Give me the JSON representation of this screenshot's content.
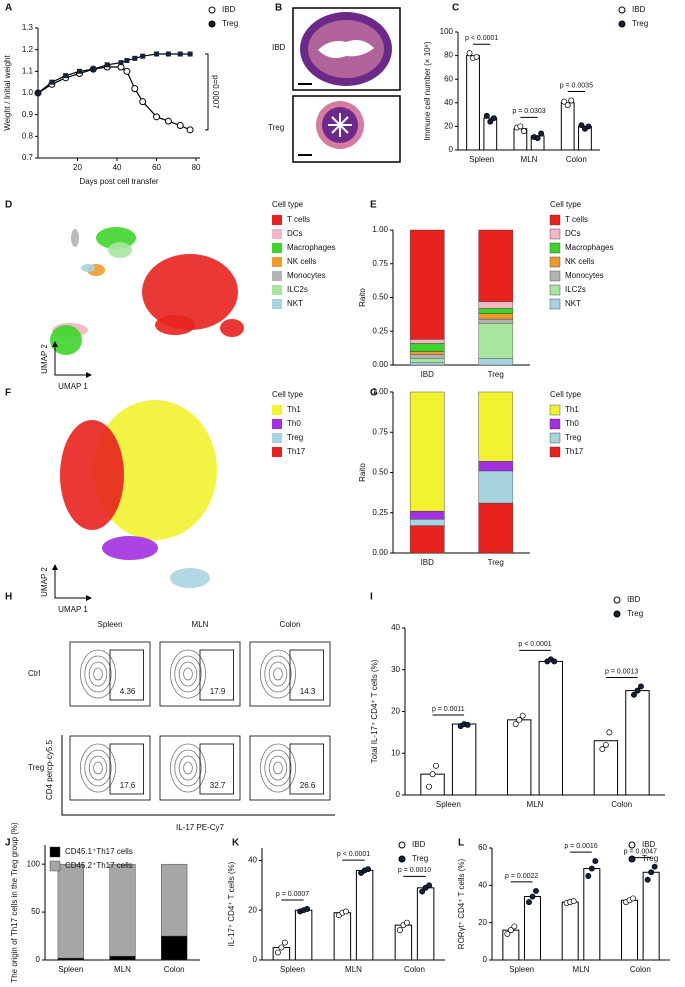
{
  "chart_data": [
    {
      "panel": "A",
      "type": "line",
      "xlabel": "Days post cell transfer",
      "ylabel": "Weight / Initial weight",
      "x": [
        0,
        7,
        14,
        21,
        28,
        35,
        42,
        45,
        49,
        53,
        60,
        66,
        72,
        77
      ],
      "series": [
        {
          "name": "IBD",
          "color": "#ffffff",
          "values": [
            1.0,
            1.04,
            1.07,
            1.09,
            1.11,
            1.12,
            1.12,
            1.1,
            1.02,
            0.96,
            0.89,
            0.87,
            0.85,
            0.83
          ]
        },
        {
          "name": "Treg",
          "color": "#14213d",
          "values": [
            1.0,
            1.05,
            1.08,
            1.1,
            1.11,
            1.13,
            1.14,
            1.15,
            1.16,
            1.17,
            1.18,
            1.18,
            1.18,
            1.18
          ]
        }
      ],
      "xlim": [
        0,
        82
      ],
      "xticks": [
        20,
        40,
        60,
        80
      ],
      "ylim": [
        0.7,
        1.3
      ],
      "yticks": [
        0.7,
        0.8,
        0.9,
        {
          "value": 1,
          "label": "1.0"
        },
        1.1,
        1.2,
        1.3
      ],
      "annotation": "p=0.0007"
    },
    {
      "panel": "C",
      "type": "bar",
      "ylabel": "Immune cell number (× 10⁶)",
      "categories": [
        "Spleen",
        "MLN",
        "Colon"
      ],
      "series": [
        {
          "name": "IBD",
          "color": "#ffffff",
          "values": [
            80,
            18,
            40
          ],
          "points": [
            [
              82,
              78,
              79
            ],
            [
              19,
              20,
              16
            ],
            [
              41,
              38,
              42
            ]
          ]
        },
        {
          "name": "Treg",
          "color": "#14213d",
          "values": [
            27,
            12,
            20
          ],
          "points": [
            [
              29,
              24,
              27
            ],
            [
              11,
              10,
              14
            ],
            [
              21,
              18,
              20
            ]
          ]
        }
      ],
      "ylim": [
        0,
        100
      ],
      "yticks": [
        0,
        20,
        40,
        60,
        80,
        100
      ],
      "pvalues": [
        "p < 0.0001",
        "p = 0.0303",
        "p = 0.0035"
      ]
    },
    {
      "panel": "D",
      "type": "umap",
      "xlabel": "UMAP 1",
      "ylabel": "UMAP 2",
      "legend_title": "Cell type",
      "categories": [
        "T cells",
        "DCs",
        "Macrophages",
        "NK cells",
        "Monocytes",
        "ILC2s",
        "NKT"
      ],
      "colors": [
        "#e8231f",
        "#f4b6c6",
        "#3fd42b",
        "#ef9a2e",
        "#b3b3b3",
        "#a8e6a0",
        "#a7d3e0"
      ]
    },
    {
      "panel": "E",
      "type": "stacked",
      "ylabel": "Raito",
      "legend_title": "Cell type",
      "stack_from": "last",
      "categories": [
        "IBD",
        "Treg"
      ],
      "series": [
        {
          "name": "T cells",
          "color": "#e8231f",
          "values": [
            0.81,
            0.53
          ]
        },
        {
          "name": "DCs",
          "color": "#f4b6c6",
          "values": [
            0.03,
            0.05
          ]
        },
        {
          "name": "Macrophages",
          "color": "#3fd42b",
          "values": [
            0.06,
            0.04
          ]
        },
        {
          "name": "NK cells",
          "color": "#ef9a2e",
          "values": [
            0.02,
            0.04
          ]
        },
        {
          "name": "Monocytes",
          "color": "#b3b3b3",
          "values": [
            0.03,
            0.03
          ]
        },
        {
          "name": "ILC2s",
          "color": "#a8e6a0",
          "values": [
            0.03,
            0.26
          ]
        },
        {
          "name": "NKT",
          "color": "#a7d3e0",
          "values": [
            0.02,
            0.05
          ]
        }
      ],
      "ylim": [
        0,
        1
      ],
      "yticks": [
        {
          "value": 0,
          "label": "0.00"
        },
        {
          "value": 0.25,
          "label": "0.25"
        },
        {
          "value": 0.5,
          "label": "0.50"
        },
        {
          "value": 0.75,
          "label": "0.75"
        },
        {
          "value": 1,
          "label": "1.00"
        }
      ]
    },
    {
      "panel": "F",
      "type": "umap",
      "xlabel": "UMAP 1",
      "ylabel": "UMAP 2",
      "legend_title": "Cell type",
      "categories": [
        "Th1",
        "Th0",
        "Treg",
        "Th17"
      ],
      "colors": [
        "#f2f230",
        "#a230e0",
        "#a8d4e0",
        "#e8231f"
      ]
    },
    {
      "panel": "G",
      "type": "stacked",
      "ylabel": "Raito",
      "legend_title": "Cell type",
      "stack_from": "last",
      "categories": [
        "IBD",
        "Treg"
      ],
      "series": [
        {
          "name": "Th1",
          "color": "#f2f230",
          "values": [
            0.74,
            0.43
          ]
        },
        {
          "name": "Th0",
          "color": "#a230e0",
          "values": [
            0.05,
            0.06
          ]
        },
        {
          "name": "Treg",
          "color": "#a8d4e0",
          "values": [
            0.04,
            0.2
          ]
        },
        {
          "name": "Th17",
          "color": "#e8231f",
          "values": [
            0.17,
            0.31
          ]
        }
      ],
      "ylim": [
        0,
        1
      ],
      "yticks": [
        {
          "value": 0,
          "label": "0.00"
        },
        {
          "value": 0.25,
          "label": "0.25"
        },
        {
          "value": 0.5,
          "label": "0.50"
        },
        {
          "value": 0.75,
          "label": "0.75"
        },
        {
          "value": 1,
          "label": "1.00"
        }
      ]
    },
    {
      "panel": "I",
      "type": "bar",
      "ylabel": "Total IL-17⁺ CD4⁺ T cells (%)",
      "categories": [
        "Spleen",
        "MLN",
        "Colon"
      ],
      "series": [
        {
          "name": "IBD",
          "color": "#ffffff",
          "values": [
            5,
            18,
            13
          ],
          "points": [
            [
              2,
              5,
              7
            ],
            [
              17,
              18,
              19
            ],
            [
              11,
              12,
              15
            ]
          ]
        },
        {
          "name": "Treg",
          "color": "#14213d",
          "values": [
            17,
            32,
            25
          ],
          "points": [
            [
              16.5,
              17,
              16.8
            ],
            [
              32,
              32.5,
              32
            ],
            [
              24,
              25,
              26
            ]
          ]
        }
      ],
      "ylim": [
        0,
        40
      ],
      "yticks": [
        0,
        10,
        20,
        30,
        40
      ],
      "pvalues": [
        "p = 0.0011",
        "p < 0.0001",
        "p = 0.0013"
      ]
    },
    {
      "panel": "J",
      "type": "stacked",
      "ylabel": "The origin of Th17 cells in the Treg group (%)",
      "stack_from": "first",
      "categories": [
        "Spleen",
        "MLN",
        "Colon"
      ],
      "series": [
        {
          "name": "CD45.1⁺Th17 cells",
          "color": "#000000",
          "values": [
            2,
            4,
            25
          ]
        },
        {
          "name": "CD45.2⁺Th17 cells",
          "color": "#a6a6a6",
          "values": [
            98,
            96,
            75
          ]
        }
      ],
      "ylim": [
        0,
        120
      ],
      "yticks": [
        0,
        50,
        100
      ]
    },
    {
      "panel": "K",
      "type": "bar",
      "ylabel": "IL-17⁺ CD4⁺ T cells (%)",
      "categories": [
        "Spleen",
        "MLN",
        "Colon"
      ],
      "series": [
        {
          "name": "IBD",
          "color": "#ffffff",
          "values": [
            5,
            19,
            14
          ],
          "points": [
            [
              3,
              5,
              7
            ],
            [
              18,
              19,
              19.5
            ],
            [
              12,
              14,
              15
            ]
          ]
        },
        {
          "name": "Treg",
          "color": "#14213d",
          "values": [
            20,
            36,
            29
          ],
          "points": [
            [
              19.5,
              20,
              20.5
            ],
            [
              35,
              36,
              36.5
            ],
            [
              27.5,
              29,
              30
            ]
          ]
        }
      ],
      "ylim": [
        0,
        45
      ],
      "yticks": [
        0,
        20,
        40
      ],
      "pvalues": [
        "p = 0.0007",
        "p < 0.0001",
        "p = 0.0010"
      ]
    },
    {
      "panel": "L",
      "type": "bar",
      "ylabel": "RORγt⁺ CD4⁺ T cells (%)",
      "categories": [
        "Spleen",
        "MLN",
        "Colon"
      ],
      "series": [
        {
          "name": "IBD",
          "color": "#ffffff",
          "values": [
            16,
            31,
            32
          ],
          "points": [
            [
              14,
              16,
              18
            ],
            [
              30.5,
              31,
              31.5
            ],
            [
              31,
              32,
              33
            ]
          ]
        },
        {
          "name": "Treg",
          "color": "#14213d",
          "values": [
            34,
            49,
            47
          ],
          "points": [
            [
              31,
              34,
              37
            ],
            [
              45,
              49,
              53
            ],
            [
              43,
              47,
              50
            ]
          ]
        }
      ],
      "ylim": [
        0,
        60
      ],
      "yticks": [
        0,
        20,
        40,
        60
      ],
      "pvalues": [
        "p = 0.0022",
        "p = 0.0016",
        "p = 0.0047"
      ]
    }
  ],
  "histology": {
    "panel": "B",
    "labels": [
      "IBD",
      "Treg"
    ]
  },
  "flow": {
    "panel": "H",
    "columns": [
      "Spleen",
      "MLN",
      "Colon"
    ],
    "rows": [
      {
        "label": "Ctrl",
        "values": [
          4.36,
          17.9,
          14.3
        ]
      },
      {
        "label": "Treg",
        "values": [
          17.6,
          32.7,
          26.6
        ]
      }
    ],
    "ylabel": "CD4 percp-cy5.5",
    "xlabel": "IL-17 PE-Cy7"
  }
}
